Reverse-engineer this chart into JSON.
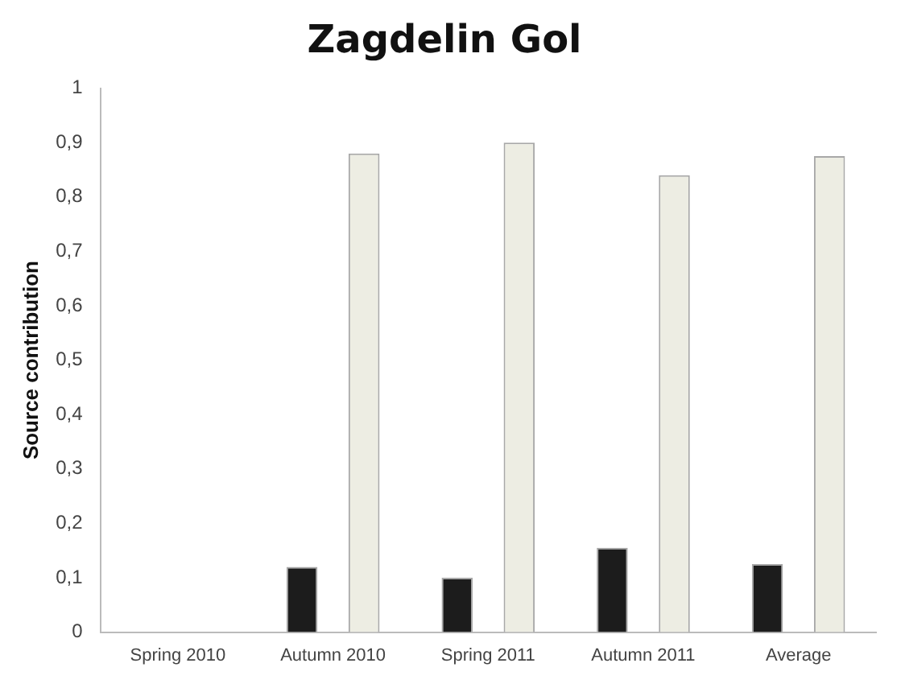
{
  "chart_data": {
    "type": "bar",
    "title": "Zagdelin Gol",
    "ylabel": "Source contribution",
    "categories": [
      "Spring 2010",
      "Autumn 2010",
      "Spring 2011",
      "Autumn 2011",
      "Average"
    ],
    "series": [
      {
        "color": "#1c1c1c",
        "values": [
          null,
          0.12,
          0.1,
          0.155,
          0.125
        ]
      },
      {
        "color": "#ededE3",
        "values": [
          null,
          0.88,
          0.9,
          0.84,
          0.875
        ]
      }
    ],
    "ylim": [
      0,
      1
    ],
    "yticks": [
      0,
      {
        "value": 0.1,
        "label": "0,1"
      },
      {
        "value": 0.2,
        "label": "0,2"
      },
      {
        "value": 0.3,
        "label": "0,3"
      },
      {
        "value": 0.4,
        "label": "0,4"
      },
      {
        "value": 0.5,
        "label": "0,5"
      },
      {
        "value": 0.6,
        "label": "0,6"
      },
      {
        "value": 0.7,
        "label": "0,7"
      },
      {
        "value": 0.8,
        "label": "0,8"
      },
      {
        "value": 0.9,
        "label": "0,9"
      },
      1
    ],
    "grid": false,
    "legend": false
  }
}
